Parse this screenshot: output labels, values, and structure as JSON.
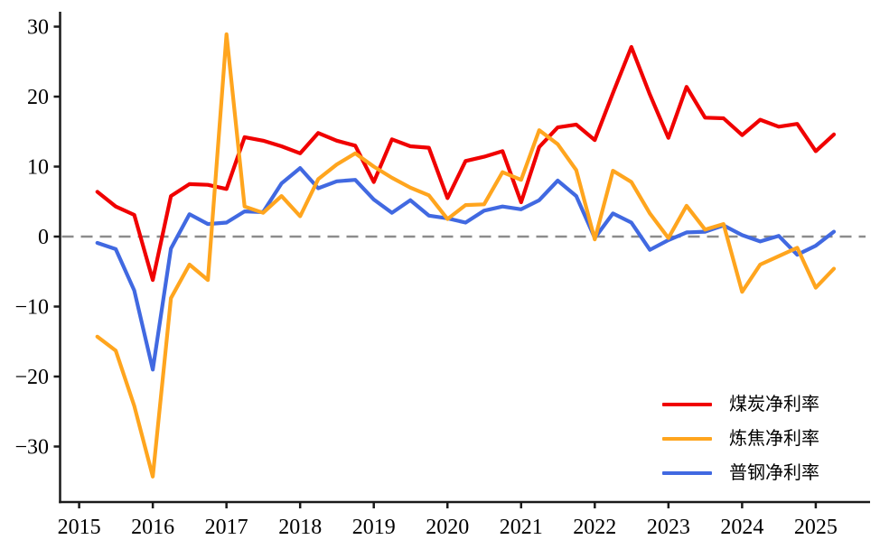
{
  "chart_data": {
    "type": "line",
    "title": "",
    "xlabel": "",
    "ylabel": "",
    "frequency": "quarterly",
    "x_start": "2015Q1",
    "x_end": "2025Q1",
    "x_tick_labels": [
      "2015",
      "2016",
      "2017",
      "2018",
      "2019",
      "2020",
      "2021",
      "2022",
      "2023",
      "2024",
      "2025"
    ],
    "y_ticks": [
      30,
      20,
      10,
      0,
      -10,
      -20,
      -30
    ],
    "y_tick_labels": [
      "30",
      "20",
      "10",
      "0",
      "−10",
      "−20",
      "−30"
    ],
    "ylim": [
      -37.9,
      32.1
    ],
    "xlim_years": [
      2014.75,
      2025.75
    ],
    "grid": false,
    "legend_position": "lower right",
    "axis_color": "#1a1a1a",
    "zero_line": {
      "style": "dashed",
      "color": "#8c8c8c",
      "y": 0
    },
    "quarters": [
      "2015Q1",
      "2015Q2",
      "2015Q3",
      "2015Q4",
      "2016Q1",
      "2016Q2",
      "2016Q3",
      "2016Q4",
      "2017Q1",
      "2017Q2",
      "2017Q3",
      "2017Q4",
      "2018Q1",
      "2018Q2",
      "2018Q3",
      "2018Q4",
      "2019Q1",
      "2019Q2",
      "2019Q3",
      "2019Q4",
      "2020Q1",
      "2020Q2",
      "2020Q3",
      "2020Q4",
      "2021Q1",
      "2021Q2",
      "2021Q3",
      "2021Q4",
      "2022Q1",
      "2022Q2",
      "2022Q3",
      "2022Q4",
      "2023Q1",
      "2023Q2",
      "2023Q3",
      "2023Q4",
      "2024Q1",
      "2024Q2",
      "2024Q3",
      "2024Q4",
      "2025Q1"
    ],
    "series": [
      {
        "name": "煤炭净利率",
        "slug": "coal",
        "color": "#f00000",
        "values": [
          6.4,
          4.3,
          3.1,
          -6.2,
          5.8,
          7.5,
          7.4,
          6.8,
          14.2,
          13.7,
          12.9,
          11.9,
          14.8,
          13.7,
          13.0,
          7.8,
          13.9,
          12.9,
          12.7,
          5.5,
          10.8,
          11.4,
          12.2,
          4.9,
          12.8,
          15.6,
          16.0,
          13.8,
          20.5,
          27.1,
          20.3,
          14.1,
          21.4,
          17.0,
          16.9,
          14.5,
          16.7,
          15.7,
          16.1,
          12.2,
          14.6
        ]
      },
      {
        "name": "炼焦净利率",
        "slug": "coking",
        "color": "#ffa51e",
        "values": [
          -14.3,
          -16.3,
          -24.2,
          -34.3,
          -8.8,
          -4.0,
          -6.2,
          28.9,
          4.3,
          3.4,
          5.8,
          2.9,
          8.2,
          10.3,
          11.9,
          10.0,
          8.4,
          7.0,
          5.9,
          2.5,
          4.5,
          4.6,
          9.2,
          8.1,
          15.2,
          13.2,
          9.5,
          -0.4,
          9.4,
          7.8,
          3.3,
          -0.2,
          4.4,
          1.0,
          1.8,
          -7.9,
          -4.0,
          -2.8,
          -1.6,
          -7.3,
          -4.6
        ]
      },
      {
        "name": "普钢净利率",
        "slug": "steel",
        "color": "#4169e1",
        "values": [
          -0.9,
          -1.8,
          -7.7,
          -19.0,
          -1.7,
          3.2,
          1.8,
          2.0,
          3.6,
          3.5,
          7.6,
          9.8,
          6.9,
          7.9,
          8.1,
          5.3,
          3.4,
          5.2,
          3.0,
          2.6,
          2.0,
          3.7,
          4.3,
          3.9,
          5.2,
          8.0,
          5.8,
          -0.2,
          3.3,
          2.0,
          -1.9,
          -0.5,
          0.6,
          0.7,
          1.6,
          0.2,
          -0.7,
          0.1,
          -2.6,
          -1.3,
          0.7
        ]
      }
    ]
  }
}
